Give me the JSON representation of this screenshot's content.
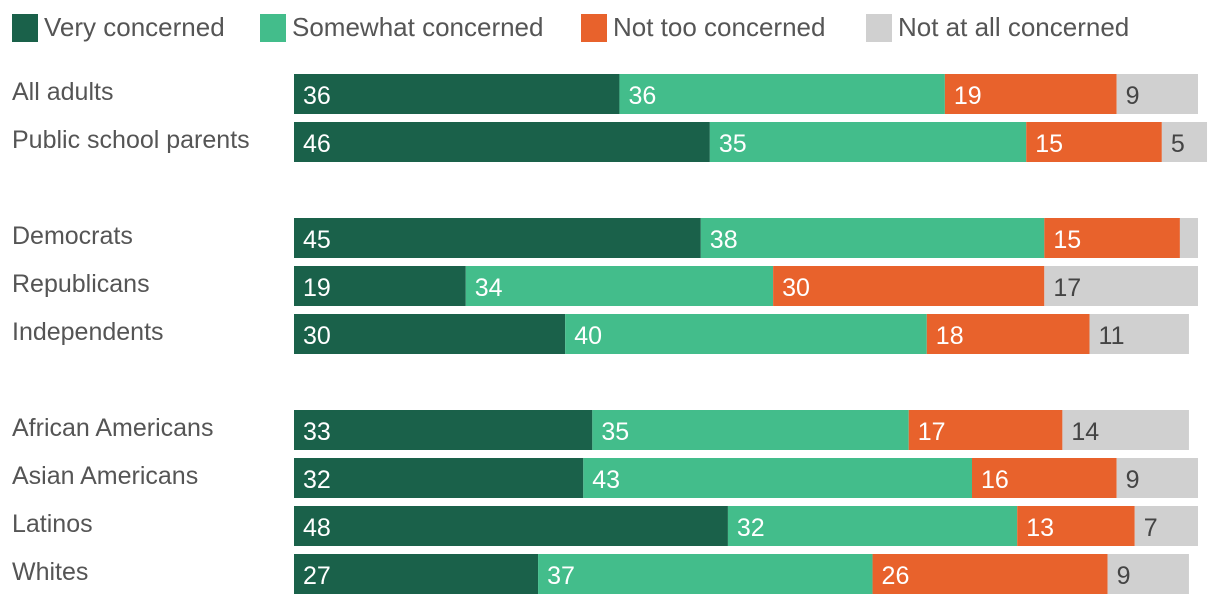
{
  "chart_data": {
    "type": "bar",
    "orientation": "horizontal",
    "stacked": true,
    "title": "",
    "xlabel": "",
    "ylabel": "",
    "xlim": [
      0,
      100
    ],
    "legend_position": "top",
    "grid": false,
    "categories": [
      "All adults",
      "Public school parents",
      "Democrats",
      "Republicans",
      "Independents",
      "African Americans",
      "Asian Americans",
      "Latinos",
      "Whites"
    ],
    "groups": [
      [
        0,
        1
      ],
      [
        2,
        3,
        4
      ],
      [
        5,
        6,
        7,
        8
      ]
    ],
    "series": [
      {
        "name": "Very concerned",
        "color": "#1a614a",
        "label_color": "#ffffff",
        "values": [
          36,
          46,
          45,
          19,
          30,
          33,
          32,
          48,
          27
        ],
        "labels": [
          "36",
          "46",
          "45",
          "19",
          "30",
          "33",
          "32",
          "48",
          "27"
        ]
      },
      {
        "name": "Somewhat concerned",
        "color": "#43bd8b",
        "label_color": "#ffffff",
        "values": [
          36,
          35,
          38,
          34,
          40,
          35,
          43,
          32,
          37
        ],
        "labels": [
          "36",
          "35",
          "38",
          "34",
          "40",
          "35",
          "43",
          "32",
          "37"
        ]
      },
      {
        "name": "Not too concerned",
        "color": "#e8622c",
        "label_color": "#ffffff",
        "values": [
          19,
          15,
          15,
          30,
          18,
          17,
          16,
          13,
          26
        ],
        "labels": [
          "19",
          "15",
          "15",
          "30",
          "18",
          "17",
          "16",
          "13",
          "26"
        ]
      },
      {
        "name": "Not at all concerned",
        "color": "#d0d0d0",
        "label_color": "#444444",
        "values": [
          9,
          5,
          2,
          17,
          11,
          14,
          9,
          7,
          9
        ],
        "labels": [
          "9",
          "5",
          "",
          "17",
          "11",
          "14",
          "9",
          "7",
          "9"
        ]
      }
    ]
  }
}
